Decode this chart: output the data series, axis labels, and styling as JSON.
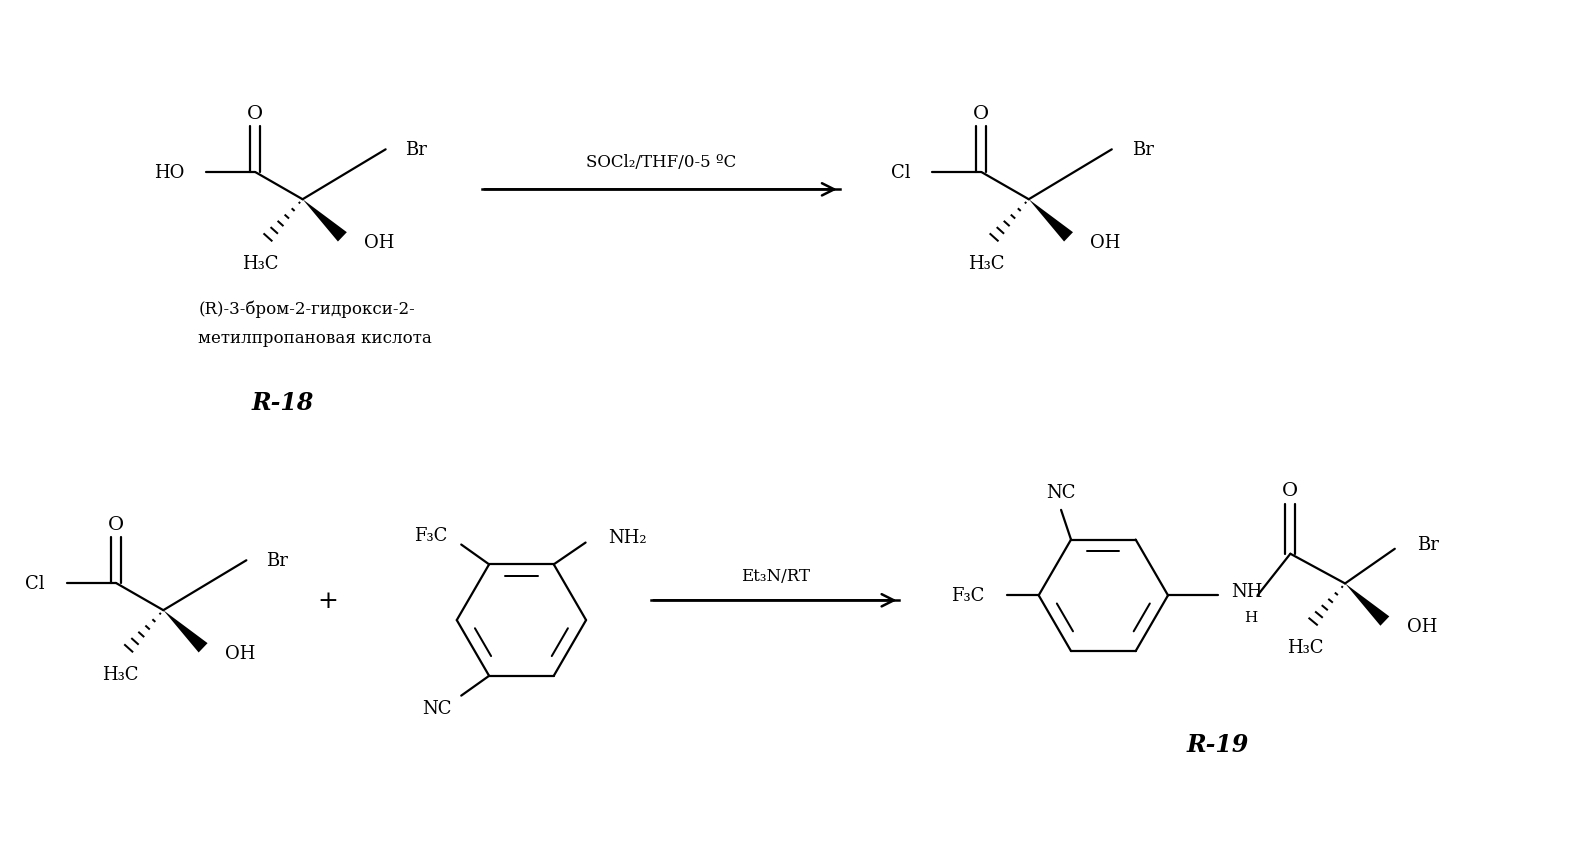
{
  "bg_color": "#ffffff",
  "text_color": "#000000",
  "reaction1_arrow_label": "SOCl₂/THF/0-5 ºC",
  "reaction2_arrow_label": "Et₃N/RT",
  "compound_label1_line1": "(R)-3-бром-2-гидрокси-2-",
  "compound_label1_line2": "метилпропановая кислота",
  "compound_label2": "R-18",
  "compound_label3": "R-19",
  "lw": 1.6,
  "fs": 13,
  "fs_subscript": 10,
  "fs_label": 16
}
